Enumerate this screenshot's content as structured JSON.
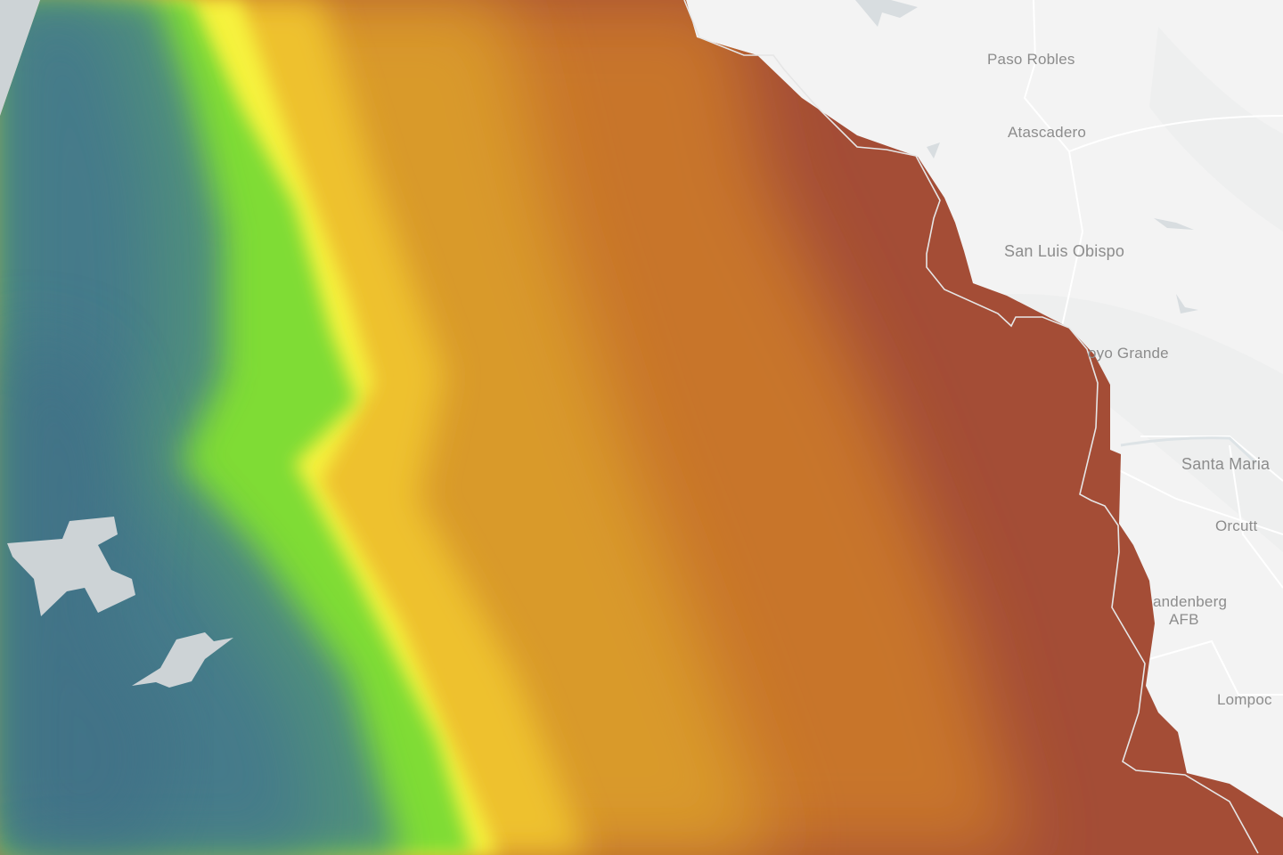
{
  "map": {
    "basemap": "light-gray",
    "layer": "bathymetry",
    "colors": {
      "land": "#f3f3f3",
      "deep": "#457a8a",
      "shelf_break": "#6fd83a",
      "mid": "#f6f23c",
      "slope": "#d89a2a",
      "shallow": "#a44d36",
      "nodata": "#cdd3d6",
      "boundary": "#e6e6e6"
    },
    "labels": [
      {
        "text": "Paso Robles"
      },
      {
        "text": "Atascadero"
      },
      {
        "text": "San Luis Obispo"
      },
      {
        "text": "oyo Grande"
      },
      {
        "text": "Santa Maria"
      },
      {
        "text": "Orcutt"
      },
      {
        "text": "andenberg"
      },
      {
        "text": "AFB"
      },
      {
        "text": "Lompoc"
      }
    ]
  }
}
